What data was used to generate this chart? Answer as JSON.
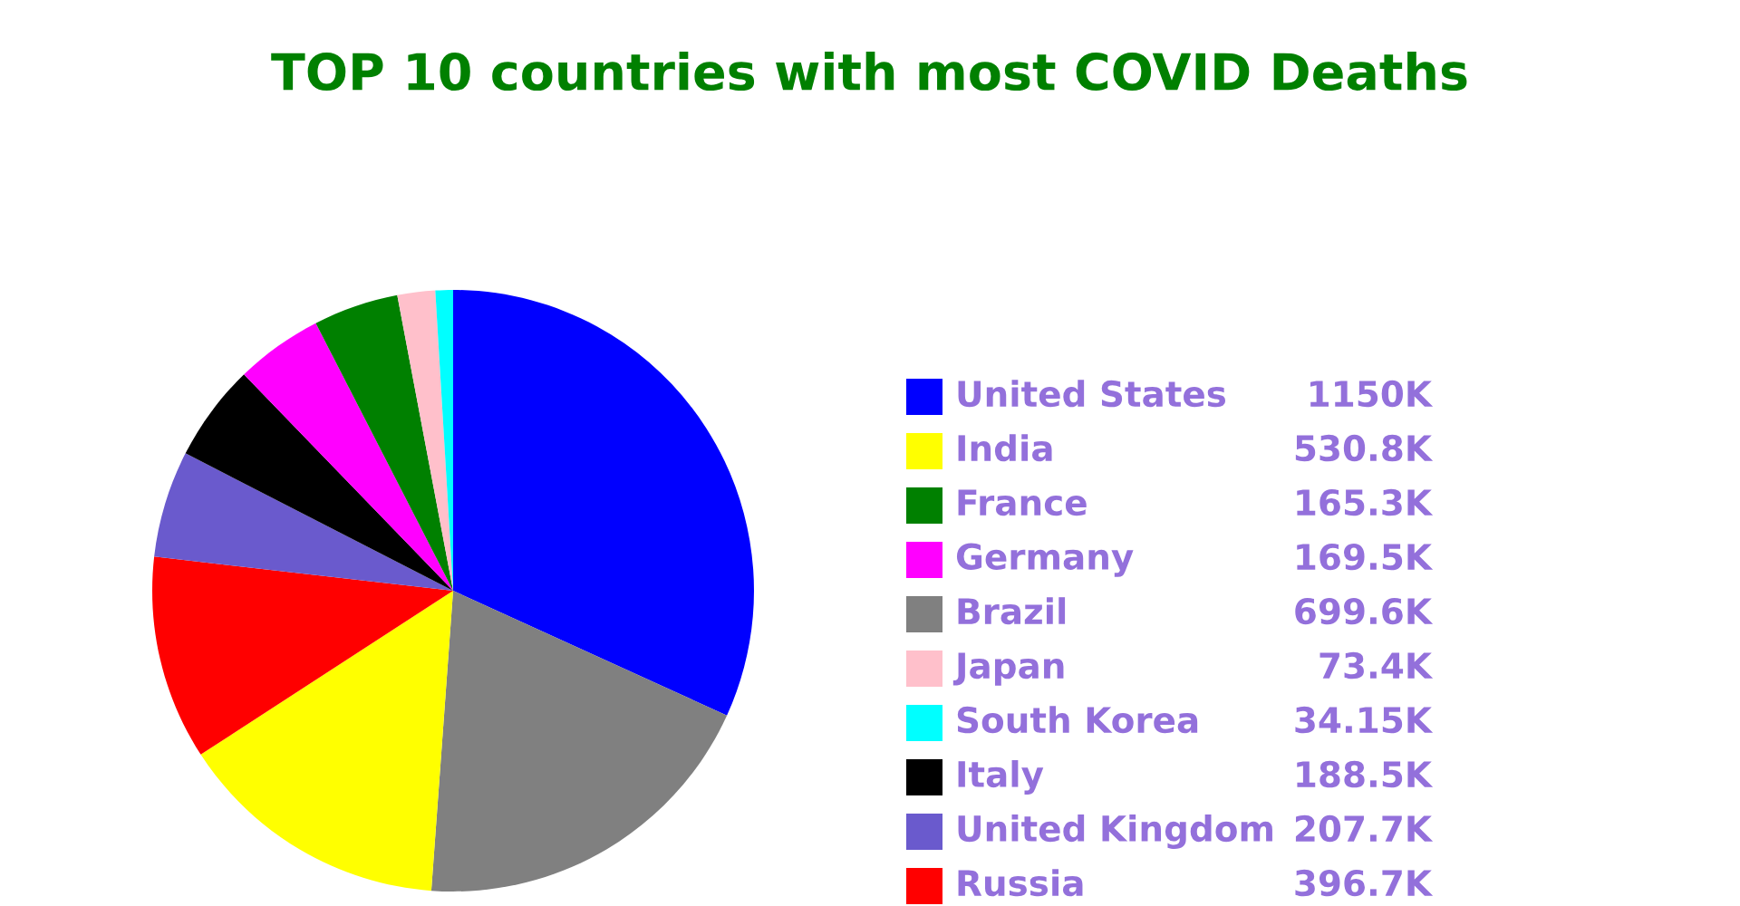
{
  "chart_data": {
    "type": "pie",
    "title": "TOP 10 countries with most COVID Deaths",
    "categories": [
      "United States",
      "India",
      "France",
      "Germany",
      "Brazil",
      "Japan",
      "South Korea",
      "Italy",
      "United Kingdom",
      "Russia"
    ],
    "values": [
      1150,
      530.8,
      165.3,
      169.5,
      699.6,
      73.4,
      34.15,
      188.5,
      207.7,
      396.7
    ],
    "value_labels": [
      "1150K",
      "530.8K",
      "165.3K",
      "169.5K",
      "699.6K",
      "73.4K",
      "34.15K",
      "188.5K",
      "207.7K",
      "396.7K"
    ],
    "colors": [
      "#0000ff",
      "#ffff00",
      "#008000",
      "#ff00ff",
      "#808080",
      "#ffc0cb",
      "#00ffff",
      "#000000",
      "#6a5acd",
      "#ff0000"
    ],
    "legend": "right"
  }
}
